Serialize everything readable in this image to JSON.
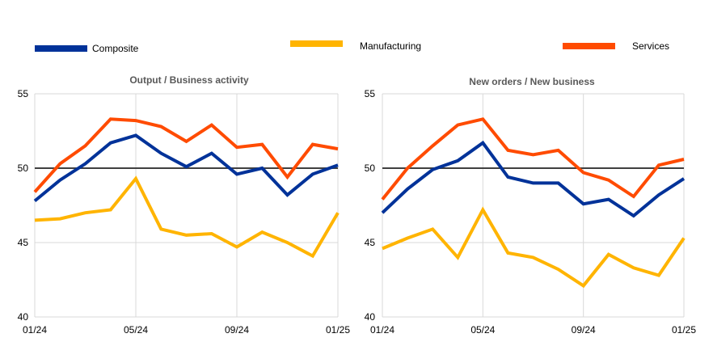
{
  "legend": {
    "items": [
      {
        "name": "Composite",
        "color": "#003299"
      },
      {
        "name": "Manufacturing",
        "color": "#ffb400"
      },
      {
        "name": "Services",
        "color": "#ff4b00"
      }
    ]
  },
  "chart_data": [
    {
      "type": "line",
      "title": "Output / Business activity",
      "xlabel": "",
      "ylabel": "",
      "x": [
        "01/24",
        "02/24",
        "03/24",
        "04/24",
        "05/24",
        "06/24",
        "07/24",
        "08/24",
        "09/24",
        "10/24",
        "11/24",
        "12/24",
        "01/25"
      ],
      "x_tick_labels": [
        "01/24",
        "05/24",
        "09/24",
        "01/25"
      ],
      "y_tick_labels": [
        "40",
        "45",
        "50",
        "55"
      ],
      "ylim": [
        40,
        55
      ],
      "reference_line": 50,
      "grid": true,
      "series": [
        {
          "name": "Composite",
          "color": "#003299",
          "values": [
            47.8,
            49.2,
            50.3,
            51.7,
            52.2,
            51.0,
            50.1,
            51.0,
            49.6,
            50.0,
            48.2,
            49.6,
            50.2
          ]
        },
        {
          "name": "Manufacturing",
          "color": "#ffb400",
          "values": [
            46.5,
            46.6,
            47.0,
            47.2,
            49.3,
            45.9,
            45.5,
            45.6,
            44.7,
            45.7,
            45.0,
            44.1,
            47.0
          ]
        },
        {
          "name": "Services",
          "color": "#ff4b00",
          "values": [
            48.4,
            50.3,
            51.5,
            53.3,
            53.2,
            52.8,
            51.8,
            52.9,
            51.4,
            51.6,
            49.4,
            51.6,
            51.3
          ]
        }
      ]
    },
    {
      "type": "line",
      "title": "New orders / New business",
      "xlabel": "",
      "ylabel": "",
      "x": [
        "01/24",
        "02/24",
        "03/24",
        "04/24",
        "05/24",
        "06/24",
        "07/24",
        "08/24",
        "09/24",
        "10/24",
        "11/24",
        "12/24",
        "01/25"
      ],
      "x_tick_labels": [
        "01/24",
        "05/24",
        "09/24",
        "01/25"
      ],
      "y_tick_labels": [
        "40",
        "45",
        "50",
        "55"
      ],
      "ylim": [
        40,
        55
      ],
      "reference_line": 50,
      "grid": true,
      "series": [
        {
          "name": "Composite",
          "color": "#003299",
          "values": [
            47.0,
            48.6,
            49.9,
            50.5,
            51.7,
            49.4,
            49.0,
            49.0,
            47.6,
            47.9,
            46.8,
            48.2,
            49.3
          ]
        },
        {
          "name": "Manufacturing",
          "color": "#ffb400",
          "values": [
            44.6,
            45.3,
            45.9,
            44.0,
            47.2,
            44.3,
            44.0,
            43.2,
            42.1,
            44.2,
            43.3,
            42.8,
            45.3
          ]
        },
        {
          "name": "Services",
          "color": "#ff4b00",
          "values": [
            47.9,
            50.0,
            51.5,
            52.9,
            53.3,
            51.2,
            50.9,
            51.2,
            49.7,
            49.2,
            48.1,
            50.2,
            50.6
          ]
        }
      ]
    }
  ]
}
